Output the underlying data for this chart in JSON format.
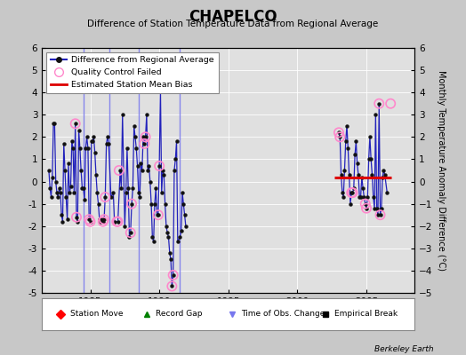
{
  "title": "CHAPELCO",
  "subtitle": "Difference of Station Temperature Data from Regional Average",
  "ylabel": "Monthly Temperature Anomaly Difference (°C)",
  "credit": "Berkeley Earth",
  "xlim": [
    1981.5,
    2008.5
  ],
  "ylim": [
    -5,
    6
  ],
  "yticks": [
    -5,
    -4,
    -3,
    -2,
    -1,
    0,
    1,
    2,
    3,
    4,
    5,
    6
  ],
  "xticks": [
    1985,
    1990,
    1995,
    2000,
    2005
  ],
  "bg_color": "#c8c8c8",
  "plot_bg_color": "#e0e0e0",
  "line_color": "#2222bb",
  "marker_color": "#111111",
  "qc_color": "#ff88cc",
  "bias_color": "#dd0000",
  "vline_color": "#7777ee",
  "segment1_x": [
    1982.0,
    1982.083,
    1982.167,
    1982.25,
    1982.333,
    1982.417,
    1982.5,
    1982.583,
    1982.667,
    1982.75,
    1982.833,
    1982.917,
    1983.0,
    1983.083,
    1983.167,
    1983.25,
    1983.333,
    1983.417,
    1983.5,
    1983.583,
    1983.667,
    1983.75,
    1983.833,
    1983.917,
    1984.0,
    1984.083,
    1984.167,
    1984.25,
    1984.333,
    1984.417,
    1984.5,
    1984.583,
    1984.667,
    1984.75,
    1984.833,
    1984.917,
    1985.0,
    1985.083,
    1985.167,
    1985.25,
    1985.333,
    1985.417,
    1985.5,
    1985.583,
    1985.667,
    1985.75,
    1985.833,
    1985.917,
    1986.0,
    1986.083,
    1986.167,
    1986.25,
    1986.333,
    1986.5,
    1986.667,
    1986.75,
    1987.0,
    1987.167,
    1987.25,
    1987.333,
    1987.5,
    1987.583,
    1987.667,
    1987.75,
    1987.833,
    1987.917,
    1988.0,
    1988.083,
    1988.167,
    1988.25,
    1988.333,
    1988.417,
    1988.5,
    1988.583,
    1988.667,
    1988.75,
    1988.833,
    1988.917,
    1989.0,
    1989.083,
    1989.167,
    1989.25,
    1989.333,
    1989.417,
    1989.5,
    1989.583,
    1989.667,
    1989.75,
    1989.833,
    1989.917,
    1990.0,
    1990.083,
    1990.167,
    1990.25,
    1990.333,
    1990.417,
    1990.5,
    1990.583,
    1990.667,
    1990.75,
    1990.833,
    1990.917,
    1991.0,
    1991.083,
    1991.167,
    1991.25,
    1991.333,
    1991.5,
    1991.583,
    1991.667,
    1991.75,
    1991.833,
    1991.917
  ],
  "segment1_y": [
    0.5,
    -0.3,
    -0.7,
    0.2,
    2.6,
    2.6,
    0.0,
    -0.5,
    -0.7,
    -0.3,
    -0.5,
    -1.5,
    -1.8,
    1.7,
    0.5,
    -0.7,
    -1.7,
    0.8,
    -0.5,
    -0.2,
    1.8,
    1.5,
    -0.5,
    2.6,
    -1.6,
    -1.8,
    2.3,
    1.5,
    0.5,
    -0.3,
    -0.3,
    -0.8,
    1.5,
    2.0,
    1.5,
    -1.7,
    -1.8,
    1.8,
    1.8,
    2.0,
    1.3,
    0.3,
    -0.5,
    -1.0,
    -1.7,
    -1.8,
    -1.7,
    -1.8,
    -1.7,
    -0.7,
    1.7,
    2.0,
    1.7,
    -0.7,
    -0.5,
    -1.8,
    -1.8,
    0.5,
    -0.3,
    3.0,
    -2.0,
    -0.5,
    1.5,
    -0.3,
    -2.5,
    -2.3,
    -1.0,
    -0.3,
    2.5,
    2.0,
    1.5,
    0.7,
    -0.5,
    -0.7,
    0.8,
    0.5,
    2.0,
    1.7,
    2.0,
    3.0,
    0.5,
    0.7,
    0.0,
    -1.0,
    -2.5,
    -2.7,
    -1.0,
    -0.3,
    -1.5,
    -1.5,
    0.7,
    4.2,
    -0.5,
    0.5,
    0.3,
    -1.0,
    -2.0,
    -2.3,
    -2.5,
    -3.2,
    -3.5,
    -4.7,
    -4.2,
    0.5,
    1.0,
    1.8,
    -2.7,
    -2.5,
    -2.2,
    -0.5,
    -1.0,
    -1.5,
    -2.0
  ],
  "segment2_x": [
    2003.0,
    2003.083,
    2003.167,
    2003.25,
    2003.333,
    2003.417,
    2003.5,
    2003.583,
    2003.667,
    2003.75,
    2003.833,
    2003.917,
    2004.0,
    2004.083,
    2004.167,
    2004.25,
    2004.333,
    2004.417,
    2004.5,
    2004.583,
    2004.667,
    2004.75,
    2004.833,
    2004.917,
    2005.0,
    2005.083,
    2005.167,
    2005.25,
    2005.333,
    2005.417,
    2005.5,
    2005.583,
    2005.667,
    2005.75,
    2005.833,
    2005.917,
    2006.0,
    2006.083,
    2006.167,
    2006.25,
    2006.333,
    2006.5
  ],
  "segment2_y": [
    2.2,
    2.0,
    0.3,
    -0.5,
    -0.7,
    0.5,
    1.8,
    2.5,
    1.5,
    0.3,
    -1.0,
    -0.5,
    -0.5,
    -0.3,
    1.2,
    1.8,
    0.8,
    0.3,
    -0.7,
    -0.7,
    0.2,
    -0.3,
    -0.7,
    -1.0,
    -1.2,
    -0.7,
    1.0,
    2.0,
    1.0,
    0.3,
    -0.7,
    -1.2,
    3.0,
    -1.2,
    -1.5,
    3.5,
    -1.5,
    -1.2,
    0.2,
    0.5,
    0.3,
    -0.5
  ],
  "qc_failed_x": [
    1983.917,
    1984.0,
    1984.917,
    1985.0,
    1985.917,
    1986.0,
    1986.083,
    1986.917,
    1987.0,
    1987.083,
    1987.917,
    1988.0,
    1988.917,
    1989.0,
    1989.917,
    1990.0,
    1990.917,
    1991.0,
    2003.0,
    2003.083,
    2003.917,
    2004.0,
    2004.917,
    2005.0,
    2005.917,
    2006.0
  ],
  "qc_failed_y": [
    2.6,
    -1.6,
    -1.7,
    -1.8,
    -1.8,
    -1.7,
    -0.7,
    -1.8,
    -1.8,
    0.5,
    -2.3,
    -1.0,
    1.7,
    2.0,
    -1.5,
    0.7,
    -4.7,
    -4.2,
    2.2,
    2.0,
    -0.5,
    -0.5,
    -1.0,
    -1.2,
    3.5,
    -1.5
  ],
  "outlier_qc_x": [
    2006.75
  ],
  "outlier_qc_y": [
    3.5
  ],
  "vlines_x": [
    1984.5,
    1986.4,
    1988.5,
    1991.5
  ],
  "bias_x_start": 2002.7,
  "bias_x_end": 2006.8,
  "bias_y": 0.18
}
